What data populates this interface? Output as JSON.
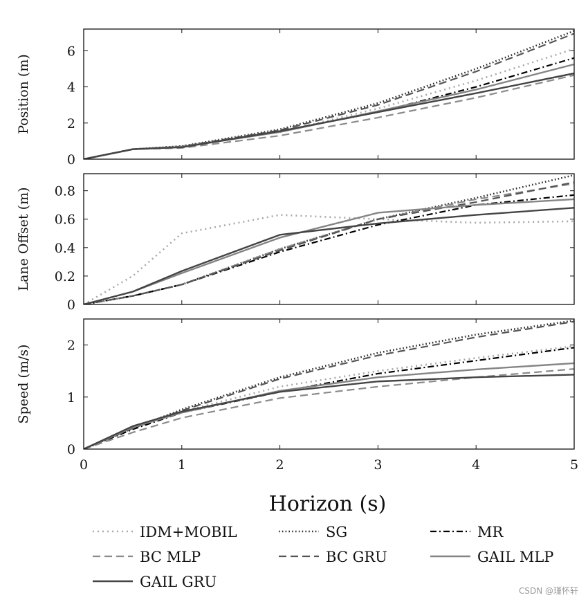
{
  "chart_data": {
    "type": "line",
    "x": [
      0,
      0.5,
      1,
      2,
      3,
      4,
      5
    ],
    "xlabel": "Horizon (s)",
    "xticks": [
      "0",
      "1",
      "2",
      "3",
      "4",
      "5"
    ],
    "xlim": [
      0,
      5
    ],
    "series_styles": [
      {
        "name": "IDM+MOBIL",
        "color": "#a8a8a8",
        "dash": "2 5",
        "width": 2.6
      },
      {
        "name": "SG",
        "color": "#2a2a2a",
        "dash": "1.6 3.2",
        "width": 2.6
      },
      {
        "name": "MR",
        "color": "#000000",
        "dash": "9 4 2 4",
        "width": 2.2
      },
      {
        "name": "BC MLP",
        "color": "#8a8a8a",
        "dash": "11 6",
        "width": 2.2
      },
      {
        "name": "BC GRU",
        "color": "#555555",
        "dash": "11 6",
        "width": 2.2
      },
      {
        "name": "GAIL MLP",
        "color": "#848484",
        "dash": "",
        "width": 2.4
      },
      {
        "name": "GAIL GRU",
        "color": "#444444",
        "dash": "",
        "width": 2.4
      }
    ],
    "panels": [
      {
        "ylabel": "Position (m)",
        "ylim": [
          0,
          7.2
        ],
        "yticks": [
          0,
          2,
          4,
          6
        ],
        "series": [
          {
            "name": "IDM+MOBIL",
            "values": [
              0,
              0.55,
              0.72,
              1.5,
              2.8,
              4.35,
              6.1
            ]
          },
          {
            "name": "SG",
            "values": [
              0,
              0.55,
              0.72,
              1.65,
              3.1,
              5.0,
              7.1
            ]
          },
          {
            "name": "MR",
            "values": [
              0,
              0.55,
              0.68,
              1.55,
              2.6,
              4.0,
              5.6
            ]
          },
          {
            "name": "BC MLP",
            "values": [
              0,
              0.55,
              0.62,
              1.3,
              2.3,
              3.4,
              4.65
            ]
          },
          {
            "name": "BC GRU",
            "values": [
              0,
              0.55,
              0.7,
              1.6,
              3.0,
              4.85,
              6.95
            ]
          },
          {
            "name": "GAIL MLP",
            "values": [
              0,
              0.55,
              0.68,
              1.5,
              2.65,
              3.85,
              5.25
            ]
          },
          {
            "name": "GAIL GRU",
            "values": [
              0,
              0.55,
              0.66,
              1.55,
              2.6,
              3.65,
              4.75
            ]
          }
        ]
      },
      {
        "ylabel": "Lane Offset (m)",
        "ylim": [
          0,
          0.92
        ],
        "yticks": [
          0,
          0.2,
          0.4,
          0.6,
          0.8
        ],
        "series": [
          {
            "name": "IDM+MOBIL",
            "values": [
              0,
              0.2,
              0.5,
              0.63,
              0.6,
              0.575,
              0.585
            ]
          },
          {
            "name": "SG",
            "values": [
              0,
              0.06,
              0.14,
              0.39,
              0.6,
              0.75,
              0.91
            ]
          },
          {
            "name": "MR",
            "values": [
              0,
              0.06,
              0.14,
              0.37,
              0.56,
              0.7,
              0.77
            ]
          },
          {
            "name": "BC MLP",
            "values": [
              0,
              0.06,
              0.14,
              0.39,
              0.6,
              0.74,
              0.85
            ]
          },
          {
            "name": "BC GRU",
            "values": [
              0,
              0.06,
              0.14,
              0.38,
              0.6,
              0.72,
              0.86
            ]
          },
          {
            "name": "GAIL MLP",
            "values": [
              0,
              0.09,
              0.22,
              0.47,
              0.645,
              0.7,
              0.74
            ]
          },
          {
            "name": "GAIL GRU",
            "values": [
              0,
              0.09,
              0.235,
              0.49,
              0.57,
              0.63,
              0.68
            ]
          }
        ]
      },
      {
        "ylabel": "Speed (m/s)",
        "ylim": [
          0,
          2.5
        ],
        "yticks": [
          0,
          1,
          2
        ],
        "series": [
          {
            "name": "IDM+MOBIL",
            "values": [
              0,
              0.4,
              0.72,
              1.2,
              1.5,
              1.75,
              1.98
            ]
          },
          {
            "name": "SG",
            "values": [
              0,
              0.4,
              0.76,
              1.38,
              1.85,
              2.2,
              2.47
            ]
          },
          {
            "name": "MR",
            "values": [
              0,
              0.38,
              0.7,
              1.1,
              1.45,
              1.7,
              1.95
            ]
          },
          {
            "name": "BC MLP",
            "values": [
              0,
              0.32,
              0.6,
              0.98,
              1.2,
              1.38,
              1.54
            ]
          },
          {
            "name": "BC GRU",
            "values": [
              0,
              0.4,
              0.74,
              1.35,
              1.8,
              2.15,
              2.45
            ]
          },
          {
            "name": "GAIL MLP",
            "values": [
              0,
              0.42,
              0.7,
              1.12,
              1.38,
              1.53,
              1.65
            ]
          },
          {
            "name": "GAIL GRU",
            "values": [
              0,
              0.44,
              0.72,
              1.1,
              1.3,
              1.38,
              1.43
            ]
          }
        ]
      }
    ],
    "legend": [
      "IDM+MOBIL",
      "SG",
      "MR",
      "BC MLP",
      "BC GRU",
      "GAIL MLP",
      "GAIL GRU"
    ],
    "legend_position": "bottom"
  },
  "watermark": "CSDN @瑾怀轩"
}
